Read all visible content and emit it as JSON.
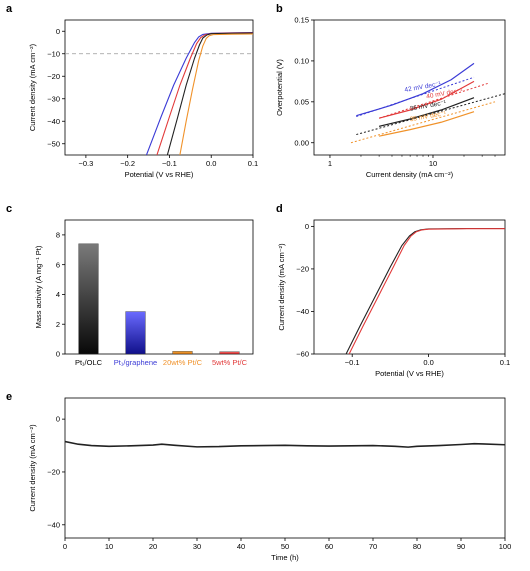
{
  "chart_data": [
    {
      "panel": "a",
      "type": "line",
      "xlabel": "Potential (V vs RHE)",
      "ylabel": "Current density (mA cm⁻²)",
      "xlim": [
        -0.35,
        0.1
      ],
      "ylim": [
        -55,
        5
      ],
      "xticks": [
        -0.3,
        -0.2,
        -0.1,
        0.0,
        0.1
      ],
      "xtick_labels": [
        "−0.3",
        "−0.2",
        "−0.1",
        "0.0",
        "0.1"
      ],
      "yticks": [
        0,
        -10,
        -20,
        -30,
        -40,
        -50
      ],
      "ytick_labels": [
        "0",
        "−10",
        "−20",
        "−30",
        "−40",
        "−50"
      ],
      "reference_line": -10,
      "series": [
        {
          "color": "#3b3bd6",
          "x": [
            -0.155,
            -0.12,
            -0.09,
            -0.06,
            -0.04,
            -0.03,
            -0.02,
            0.0,
            0.05,
            0.1
          ],
          "y": [
            -55,
            -38,
            -24,
            -12,
            -5,
            -2.5,
            -1.4,
            -0.9,
            -0.7,
            -0.6
          ]
        },
        {
          "color": "#e23a3a",
          "x": [
            -0.13,
            -0.1,
            -0.075,
            -0.05,
            -0.035,
            -0.025,
            -0.015,
            0.0,
            0.05,
            0.1
          ],
          "y": [
            -55,
            -38,
            -24,
            -12,
            -5.5,
            -2.8,
            -1.6,
            -1.0,
            -0.8,
            -0.7
          ]
        },
        {
          "color": "#222222",
          "x": [
            -0.105,
            -0.08,
            -0.06,
            -0.04,
            -0.028,
            -0.02,
            -0.01,
            0.0,
            0.05,
            0.1
          ],
          "y": [
            -55,
            -38,
            -24,
            -12,
            -6,
            -3,
            -1.6,
            -1.1,
            -0.9,
            -0.8
          ]
        },
        {
          "color": "#f0922a",
          "x": [
            -0.075,
            -0.06,
            -0.045,
            -0.03,
            -0.02,
            -0.012,
            -0.005,
            0.005,
            0.05,
            0.1
          ],
          "y": [
            -55,
            -40,
            -26,
            -13,
            -6.5,
            -3.2,
            -2.0,
            -1.5,
            -1.3,
            -1.2
          ]
        }
      ]
    },
    {
      "panel": "b",
      "type": "line",
      "xscale": "log",
      "xlabel": "Current density (mA cm⁻²)",
      "ylabel": "Overpotential (V)",
      "xlim": [
        0.7,
        50
      ],
      "ylim": [
        -0.015,
        0.15
      ],
      "xticks": [
        1,
        10
      ],
      "xtick_labels": [
        "1",
        "10"
      ],
      "yticks": [
        0.0,
        0.05,
        0.1,
        0.15
      ],
      "ytick_labels": [
        "0.00",
        "0.05",
        "0.10",
        "0.15"
      ],
      "annotations": [
        {
          "text": "42 mV dec⁻¹",
          "color": "#3b3bd6"
        },
        {
          "text": "40 mV dec⁻¹",
          "color": "#e23a3a"
        },
        {
          "text": "36 mV dec⁻¹",
          "color": "#222222"
        },
        {
          "text": "35 mV dec⁻¹",
          "color": "#f0922a"
        }
      ],
      "series": [
        {
          "color": "#3b3bd6",
          "data_x": [
            1.8,
            4,
            8,
            15,
            25
          ],
          "data_y": [
            0.033,
            0.046,
            0.06,
            0.077,
            0.097
          ],
          "fit_x": [
            1.8,
            25
          ],
          "fit_y": [
            0.032,
            0.08
          ]
        },
        {
          "color": "#e23a3a",
          "data_x": [
            3,
            6,
            12,
            25
          ],
          "data_y": [
            0.03,
            0.04,
            0.053,
            0.075
          ],
          "fit_x": [
            3,
            35
          ],
          "fit_y": [
            0.03,
            0.073
          ]
        },
        {
          "color": "#222222",
          "data_x": [
            3,
            6,
            12,
            25
          ],
          "data_y": [
            0.02,
            0.029,
            0.04,
            0.055
          ],
          "fit_x": [
            1.8,
            50
          ],
          "fit_y": [
            0.01,
            0.06
          ]
        },
        {
          "color": "#f0922a",
          "data_x": [
            3,
            6,
            12,
            25
          ],
          "data_y": [
            0.008,
            0.016,
            0.025,
            0.038
          ],
          "fit_x": [
            1.6,
            40
          ],
          "fit_y": [
            0.0,
            0.05
          ]
        }
      ]
    },
    {
      "panel": "c",
      "type": "bar",
      "ylabel": "Mass activity (A mg⁻¹ Pt)",
      "ylim": [
        0,
        9
      ],
      "yticks": [
        0,
        2,
        4,
        6,
        8
      ],
      "ytick_labels": [
        "0",
        "2",
        "4",
        "6",
        "8"
      ],
      "categories": [
        "Pt₁/OLC",
        "Pt₁/graphene",
        "20wt% Pt/C",
        "5wt% Pt/C"
      ],
      "category_colors": [
        "#000000",
        "#3b3bd6",
        "#f0922a",
        "#e23a3a"
      ],
      "values": [
        7.4,
        2.85,
        0.18,
        0.15
      ],
      "bar_styles": [
        "gradient-gray",
        "gradient-blue",
        "gradient-orange",
        "gradient-red"
      ]
    },
    {
      "panel": "d",
      "type": "line",
      "xlabel": "Potential (V vs RHE)",
      "ylabel": "Current density (mA cm⁻²)",
      "xlim": [
        -0.15,
        0.1
      ],
      "ylim": [
        -60,
        3
      ],
      "xticks": [
        -0.1,
        0.0,
        0.1
      ],
      "xtick_labels": [
        "−0.1",
        "0.0",
        "0.1"
      ],
      "yticks": [
        0,
        -20,
        -40,
        -60
      ],
      "ytick_labels": [
        "0",
        "−20",
        "−40",
        "−60"
      ],
      "series": [
        {
          "color": "#222222",
          "x": [
            -0.108,
            -0.09,
            -0.07,
            -0.05,
            -0.035,
            -0.025,
            -0.018,
            -0.01,
            0.0,
            0.05,
            0.1
          ],
          "y": [
            -60,
            -47,
            -33,
            -19,
            -9,
            -4.5,
            -2.5,
            -1.6,
            -1.2,
            -1.0,
            -1.0
          ]
        },
        {
          "color": "#e23a3a",
          "x": [
            -0.104,
            -0.086,
            -0.066,
            -0.046,
            -0.032,
            -0.023,
            -0.016,
            -0.008,
            0.0,
            0.05,
            0.1
          ],
          "y": [
            -60,
            -47,
            -33,
            -19,
            -9,
            -4.5,
            -2.5,
            -1.6,
            -1.3,
            -1.1,
            -1.1
          ]
        }
      ]
    },
    {
      "panel": "e",
      "type": "line",
      "xlabel": "Time (h)",
      "ylabel": "Current density (mA cm⁻²)",
      "xlim": [
        0,
        100
      ],
      "ylim": [
        -45,
        8
      ],
      "xticks": [
        0,
        10,
        20,
        30,
        40,
        50,
        60,
        70,
        80,
        90,
        100
      ],
      "xtick_labels": [
        "0",
        "10",
        "20",
        "30",
        "40",
        "50",
        "60",
        "70",
        "80",
        "90",
        "100"
      ],
      "yticks": [
        0,
        -20,
        -40
      ],
      "ytick_labels": [
        "0",
        "−20",
        "−40"
      ],
      "series": [
        {
          "color": "#222222",
          "x": [
            0,
            3,
            6,
            10,
            15,
            20,
            22,
            25,
            30,
            35,
            40,
            45,
            50,
            55,
            60,
            65,
            70,
            75,
            78,
            80,
            85,
            90,
            93,
            95,
            100
          ],
          "y": [
            -8.5,
            -9.5,
            -10,
            -10.3,
            -10.1,
            -9.8,
            -9.5,
            -9.9,
            -10.5,
            -10.4,
            -10.1,
            -10.0,
            -9.9,
            -10.1,
            -10.2,
            -10.1,
            -10.0,
            -10.3,
            -10.6,
            -10.3,
            -10.0,
            -9.6,
            -9.3,
            -9.4,
            -9.7
          ]
        }
      ]
    }
  ]
}
